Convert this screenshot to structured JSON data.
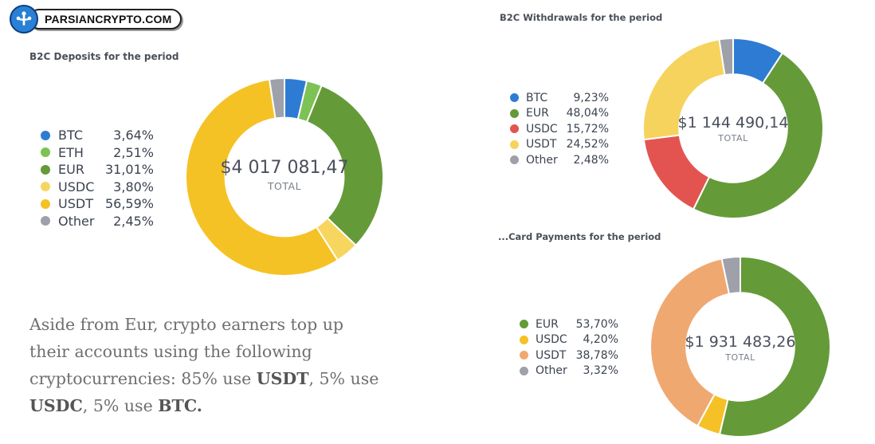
{
  "logo": {
    "text": "PARSIANCRYPTO.COM",
    "icon": "network-tree-icon"
  },
  "summary": {
    "t1": "Aside from Eur, crypto earners top up their accounts using the following cryptocurrencies: 85% use ",
    "b1": "USDT",
    "t2": ", 5% use ",
    "b2": "USDC",
    "t3": ", 5% use ",
    "b3": "BTC."
  },
  "colors": {
    "BTC": "#2e7bd3",
    "ETH": "#7cc254",
    "EUR": "#659a39",
    "USDC_yellow": "#f7d65f",
    "USDT": "#f5c226",
    "Other": "#9ea1aa",
    "USDC_red": "#e35450",
    "USDT_light": "#f6d35c",
    "USDC_gold": "#f5c127",
    "USDT_orange": "#f0a871"
  },
  "chart_data": [
    {
      "type": "pie",
      "title": "B2C Deposits for the period",
      "categories": [
        "BTC",
        "ETH",
        "EUR",
        "USDC",
        "USDT",
        "Other"
      ],
      "values": [
        3.64,
        2.51,
        31.01,
        3.8,
        56.59,
        2.45
      ],
      "labels": [
        "3,64%",
        "2,51%",
        "31,01%",
        "3,80%",
        "56,59%",
        "2,45%"
      ],
      "colors": [
        "#2e7bd3",
        "#7cc254",
        "#659a39",
        "#f7d65f",
        "#f5c226",
        "#9ea1aa"
      ],
      "total": "$4 017 081,47",
      "total_label": "TOTAL",
      "legend": "left"
    },
    {
      "type": "pie",
      "title": "B2C Withdrawals for the period",
      "categories": [
        "BTC",
        "EUR",
        "USDC",
        "USDT",
        "Other"
      ],
      "values": [
        9.23,
        48.04,
        15.72,
        24.52,
        2.48
      ],
      "labels": [
        "9,23%",
        "48,04%",
        "15,72%",
        "24,52%",
        "2,48%"
      ],
      "colors": [
        "#2e7bd3",
        "#659a39",
        "#e35450",
        "#f6d35c",
        "#9ea1aa"
      ],
      "total": "$1 144 490,14",
      "total_label": "TOTAL",
      "legend": "left"
    },
    {
      "type": "pie",
      "title": "...Card Payments for the period",
      "categories": [
        "EUR",
        "USDC",
        "USDT",
        "Other"
      ],
      "values": [
        53.7,
        4.2,
        38.78,
        3.32
      ],
      "labels": [
        "53,70%",
        "4,20%",
        "38,78%",
        "3,32%"
      ],
      "colors": [
        "#659a39",
        "#f5c127",
        "#f0a871",
        "#9ea1aa"
      ],
      "total": "$1 931 483,26",
      "total_label": "TOTAL",
      "legend": "left"
    }
  ]
}
